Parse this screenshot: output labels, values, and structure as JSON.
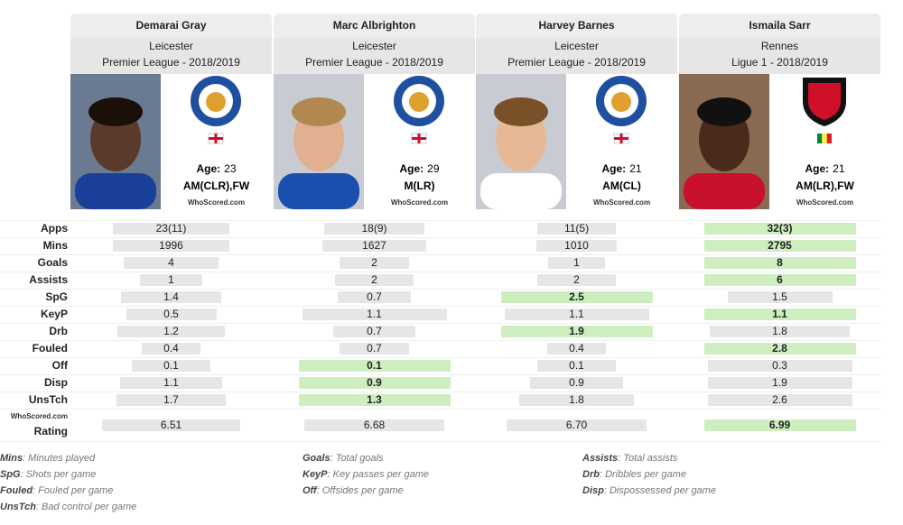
{
  "age_label": "Age:",
  "logo_text": "WhoScored.com",
  "rating_label": "Rating",
  "players": [
    {
      "name": "Demarai Gray",
      "club": "Leicester",
      "competition": "Premier League - 2018/2019",
      "age": "23",
      "position": "AM(CLR),FW"
    },
    {
      "name": "Marc Albrighton",
      "club": "Leicester",
      "competition": "Premier League - 2018/2019",
      "age": "29",
      "position": "M(LR)"
    },
    {
      "name": "Harvey Barnes",
      "club": "Leicester",
      "competition": "Premier League - 2018/2019",
      "age": "21",
      "position": "AM(CL)"
    },
    {
      "name": "Ismaila Sarr",
      "club": "Rennes",
      "competition": "Ligue 1 - 2018/2019",
      "age": "21",
      "position": "AM(LR),FW"
    }
  ],
  "stats": [
    {
      "label": "Apps",
      "values": [
        "23(11)",
        "18(9)",
        "11(5)",
        "32(3)"
      ],
      "highlight": [
        3
      ]
    },
    {
      "label": "Mins",
      "values": [
        "1996",
        "1627",
        "1010",
        "2795"
      ],
      "highlight": [
        3
      ]
    },
    {
      "label": "Goals",
      "values": [
        "4",
        "2",
        "1",
        "8"
      ],
      "highlight": [
        3
      ]
    },
    {
      "label": "Assists",
      "values": [
        "1",
        "2",
        "2",
        "6"
      ],
      "highlight": [
        3
      ]
    },
    {
      "label": "SpG",
      "values": [
        "1.4",
        "0.7",
        "2.5",
        "1.5"
      ],
      "highlight": [
        2
      ]
    },
    {
      "label": "KeyP",
      "values": [
        "0.5",
        "1.1",
        "1.1",
        "1.1"
      ],
      "highlight": [
        3
      ]
    },
    {
      "label": "Drb",
      "values": [
        "1.2",
        "0.7",
        "1.9",
        "1.8"
      ],
      "highlight": [
        2
      ]
    },
    {
      "label": "Fouled",
      "values": [
        "0.4",
        "0.7",
        "0.4",
        "2.8"
      ],
      "highlight": [
        3
      ]
    },
    {
      "label": "Off",
      "values": [
        "0.1",
        "0.1",
        "0.1",
        "0.3"
      ],
      "highlight": [
        1
      ]
    },
    {
      "label": "Disp",
      "values": [
        "1.1",
        "0.9",
        "0.9",
        "1.9"
      ],
      "highlight": [
        1
      ]
    },
    {
      "label": "UnsTch",
      "values": [
        "1.7",
        "1.3",
        "1.8",
        "2.6"
      ],
      "highlight": [
        1
      ]
    }
  ],
  "rating": {
    "values": [
      "6.51",
      "6.68",
      "6.70",
      "6.99"
    ],
    "highlight": [
      3
    ]
  },
  "glossary": [
    [
      {
        "term": "Mins",
        "definition": ": Minutes played"
      },
      {
        "term": "SpG",
        "definition": ": Shots per game"
      },
      {
        "term": "Fouled",
        "definition": ": Fouled per game"
      },
      {
        "term": "UnsTch",
        "definition": ": Bad control per game"
      }
    ],
    [
      {
        "term": "Goals",
        "definition": ": Total goals"
      },
      {
        "term": "KeyP",
        "definition": ": Key passes per game"
      },
      {
        "term": "Off",
        "definition": ": Offsides per game"
      }
    ],
    [
      {
        "term": "Assists",
        "definition": ": Total assists"
      },
      {
        "term": "Drb",
        "definition": ": Dribbles per game"
      },
      {
        "term": "Disp",
        "definition": ": Dispossessed per game"
      }
    ]
  ]
}
